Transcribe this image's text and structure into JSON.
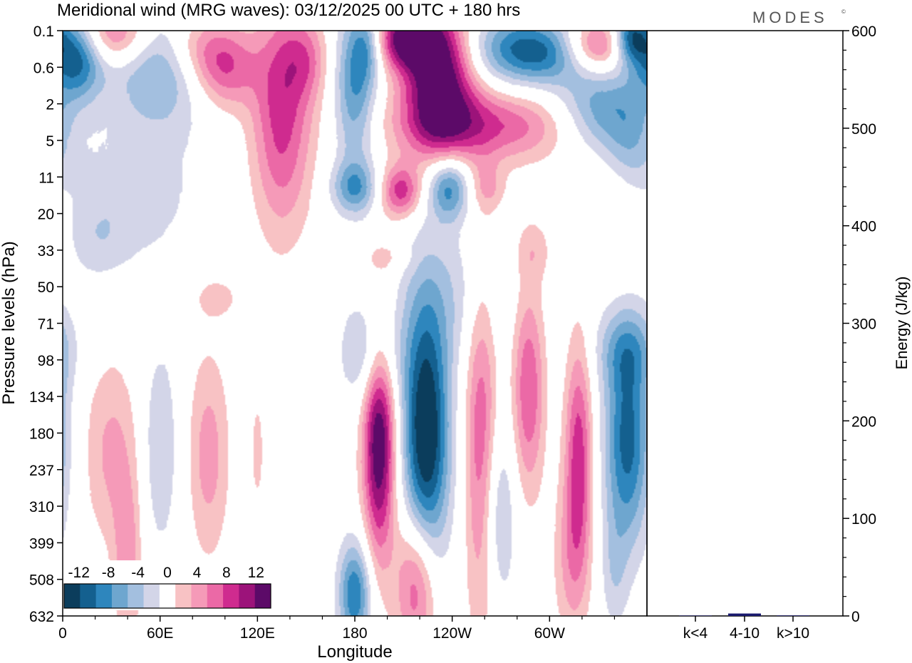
{
  "brand": "MODES",
  "brand_mark": "©",
  "chart_data": [
    {
      "type": "heatmap",
      "title": "Meridional wind (MRG waves):  03/12/2025  00 UTC  + 180 hrs",
      "xlabel": "Longitude",
      "ylabel": "Pressure levels (hPa)",
      "x_ticks": [
        "0",
        "60E",
        "120E",
        "180",
        "120W",
        "60W"
      ],
      "x_range_deg": [
        0,
        360
      ],
      "y_levels": [
        "0.1",
        "0.6",
        "2",
        "5",
        "11",
        "20",
        "33",
        "50",
        "71",
        "98",
        "134",
        "180",
        "237",
        "310",
        "399",
        "508",
        "632"
      ],
      "colorbar": {
        "labels": [
          "-12",
          "-8",
          "-4",
          "0",
          "4",
          "8",
          "12"
        ],
        "bounds": [
          -14,
          -12,
          -10,
          -8,
          -6,
          -4,
          -2,
          2,
          4,
          6,
          8,
          10,
          12,
          14
        ],
        "colors": [
          "#0b3d5c",
          "#14608f",
          "#2e86bd",
          "#6ea6cf",
          "#a3bfdf",
          "#d3d5e8",
          "#ffffff",
          "#f8c2c4",
          "#f59ab8",
          "#eb69a6",
          "#cf2b8f",
          "#9c137a",
          "#5c0a68"
        ]
      },
      "blobs": [
        {
          "lon": 8,
          "lev": 0.6,
          "w": 12,
          "h": 0.8,
          "v": -13
        },
        {
          "lon": 30,
          "lev": 0.1,
          "w": 18,
          "h": 0.6,
          "v": 9
        },
        {
          "lon": 60,
          "lev": 0.9,
          "w": 22,
          "h": 1.2,
          "v": -7
        },
        {
          "lon": 45,
          "lev": 4.5,
          "w": 30,
          "h": 1.4,
          "v": -3
        },
        {
          "lon": 82,
          "lev": 0.4,
          "w": 14,
          "h": 0.7,
          "v": 5
        },
        {
          "lon": 100,
          "lev": 1.0,
          "w": 14,
          "h": 0.8,
          "v": 8
        },
        {
          "lon": 135,
          "lev": 2.3,
          "w": 13,
          "h": 2.2,
          "v": 9
        },
        {
          "lon": 150,
          "lev": 0.8,
          "w": 10,
          "h": 0.8,
          "v": 5
        },
        {
          "lon": 180,
          "lev": 1.6,
          "w": 9,
          "h": 1.6,
          "v": -8
        },
        {
          "lon": 188,
          "lev": 0.4,
          "w": 7,
          "h": 0.7,
          "v": -6
        },
        {
          "lon": 232,
          "lev": 1.3,
          "w": 15,
          "h": 1.3,
          "v": 15
        },
        {
          "lon": 212,
          "lev": 0.2,
          "w": 14,
          "h": 0.6,
          "v": 13
        },
        {
          "lon": 262,
          "lev": 2.6,
          "w": 40,
          "h": 0.7,
          "v": 8
        },
        {
          "lon": 278,
          "lev": 0.5,
          "w": 22,
          "h": 0.7,
          "v": -8
        },
        {
          "lon": 302,
          "lev": 0.6,
          "w": 18,
          "h": 0.6,
          "v": -6
        },
        {
          "lon": 330,
          "lev": 0.4,
          "w": 16,
          "h": 0.5,
          "v": 9
        },
        {
          "lon": 350,
          "lev": 0.2,
          "w": 8,
          "h": 0.5,
          "v": -12
        },
        {
          "lon": 332,
          "lev": 2.2,
          "w": 20,
          "h": 0.8,
          "v": -8
        },
        {
          "lon": 350,
          "lev": 3.4,
          "w": 12,
          "h": 1.0,
          "v": -5
        },
        {
          "lon": 180,
          "lev": 4.3,
          "w": 10,
          "h": 0.5,
          "v": -7
        },
        {
          "lon": 208,
          "lev": 4.4,
          "w": 9,
          "h": 0.5,
          "v": 9
        },
        {
          "lon": 238,
          "lev": 4.3,
          "w": 9,
          "h": 0.6,
          "v": -9
        },
        {
          "lon": 262,
          "lev": 4.3,
          "w": 8,
          "h": 0.5,
          "v": 4
        },
        {
          "lon": 344,
          "lev": 4.8,
          "w": 14,
          "h": 1.2,
          "v": 3
        },
        {
          "lon": 240,
          "lev": 7.2,
          "w": 24,
          "h": 1.4,
          "v": -3
        },
        {
          "lon": 290,
          "lev": 6.0,
          "w": 8,
          "h": 0.6,
          "v": 3
        },
        {
          "lon": 95,
          "lev": 7.3,
          "w": 10,
          "h": 0.4,
          "v": 3
        },
        {
          "lon": 200,
          "lev": 6.2,
          "w": 10,
          "h": 0.3,
          "v": 2.5
        },
        {
          "lon": 20,
          "lev": 5.7,
          "w": 14,
          "h": 0.8,
          "v": -2.5
        },
        {
          "lon": 195,
          "lev": 11.2,
          "w": 7,
          "h": 2.2,
          "v": 14.5
        },
        {
          "lon": 224,
          "lev": 11.0,
          "w": 10,
          "h": 2.5,
          "v": -15
        },
        {
          "lon": 258,
          "lev": 11.4,
          "w": 7,
          "h": 3.5,
          "v": 8
        },
        {
          "lon": 287,
          "lev": 9.8,
          "w": 7,
          "h": 2.0,
          "v": 8
        },
        {
          "lon": 318,
          "lev": 11.6,
          "w": 6,
          "h": 2.2,
          "v": 9
        },
        {
          "lon": 348,
          "lev": 11.2,
          "w": 10,
          "h": 2.0,
          "v": -11
        },
        {
          "lon": 190,
          "lev": 8.8,
          "w": 12,
          "h": 1.0,
          "v": -6
        },
        {
          "lon": 348,
          "lev": 8.7,
          "w": 14,
          "h": 0.8,
          "v": -5
        },
        {
          "lon": 30,
          "lev": 11.5,
          "w": 12,
          "h": 1.8,
          "v": 4.5
        },
        {
          "lon": 60,
          "lev": 11.4,
          "w": 8,
          "h": 2.0,
          "v": -4
        },
        {
          "lon": 90,
          "lev": 11.6,
          "w": 9,
          "h": 2.0,
          "v": 5
        },
        {
          "lon": 120,
          "lev": 11.5,
          "w": 4,
          "h": 1.5,
          "v": 2.5
        },
        {
          "lon": 40,
          "lev": 14.5,
          "w": 6,
          "h": 1.6,
          "v": 5
        },
        {
          "lon": 180,
          "lev": 15.4,
          "w": 7,
          "h": 1.0,
          "v": -10
        },
        {
          "lon": 218,
          "lev": 15.1,
          "w": 9,
          "h": 1.4,
          "v": 9
        },
        {
          "lon": 268,
          "lev": 13.2,
          "w": 8,
          "h": 1.8,
          "v": -5
        },
        {
          "lon": 313,
          "lev": 14.5,
          "w": 8,
          "h": 1.6,
          "v": 4
        },
        {
          "lon": 340,
          "lev": 14.8,
          "w": 6,
          "h": 1.2,
          "v": -3
        }
      ]
    },
    {
      "type": "bar",
      "ylabel": "Energy (J/kg)",
      "categories": [
        "k<4",
        "4-10",
        "k>10"
      ],
      "values": [
        0.4,
        2.5,
        0.5
      ],
      "ylim": [
        0,
        600
      ],
      "y_ticks": [
        "0",
        "100",
        "200",
        "300",
        "400",
        "500",
        "600"
      ],
      "bar_color": "#1a1a6e"
    }
  ]
}
